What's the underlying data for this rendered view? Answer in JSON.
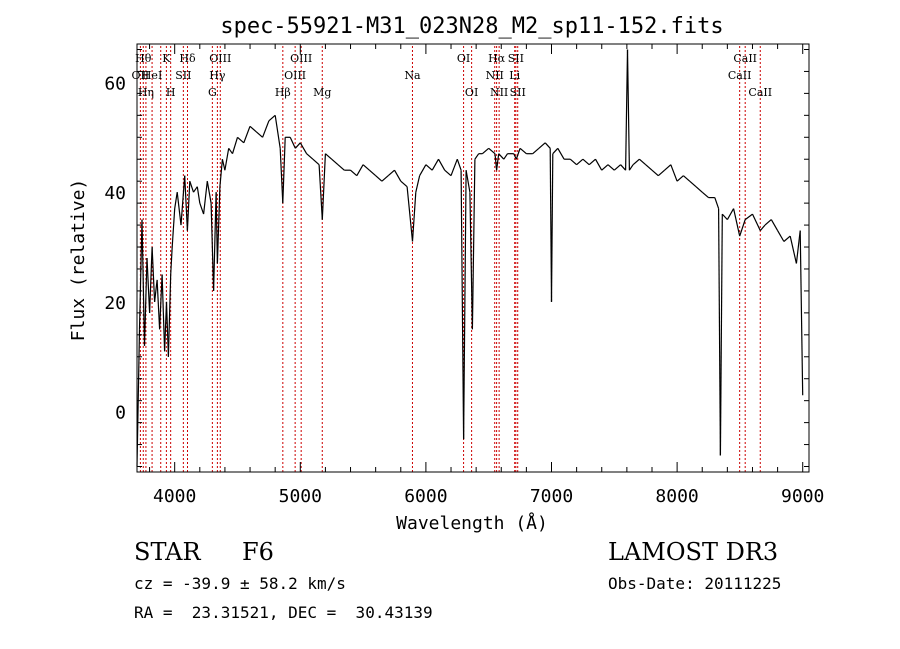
{
  "chart_data": {
    "type": "line",
    "title": "spec-55921-M31_023N28_M2_sp11-152.fits",
    "xlabel": "Wavelength (Å)",
    "ylabel": "Flux (relative)",
    "xlim": [
      3700,
      9050
    ],
    "ylim": [
      -11,
      67
    ],
    "xticks": [
      4000,
      5000,
      6000,
      7000,
      8000,
      9000
    ],
    "yticks": [
      0,
      20,
      40,
      60
    ],
    "line_color": "#000000",
    "marker_color": "#cc0000",
    "series": [
      {
        "x": [
          3700,
          3720,
          3740,
          3760,
          3780,
          3800,
          3820,
          3840,
          3860,
          3880,
          3900,
          3920,
          3935,
          3950,
          3968,
          3980,
          4000,
          4020,
          4050,
          4080,
          4101,
          4120,
          4150,
          4180,
          4200,
          4230,
          4260,
          4290,
          4310,
          4330,
          4340,
          4360,
          4380,
          4400,
          4430,
          4460,
          4500,
          4550,
          4600,
          4650,
          4700,
          4750,
          4800,
          4840,
          4861,
          4880,
          4920,
          4960,
          5000,
          5050,
          5100,
          5150,
          5175,
          5200,
          5250,
          5300,
          5350,
          5400,
          5450,
          5500,
          5550,
          5600,
          5650,
          5700,
          5750,
          5800,
          5850,
          5893,
          5920,
          5950,
          6000,
          6050,
          6100,
          6150,
          6200,
          6250,
          6280,
          6300,
          6320,
          6350,
          6370,
          6390,
          6420,
          6450,
          6500,
          6550,
          6563,
          6580,
          6620,
          6650,
          6700,
          6720,
          6750,
          6800,
          6850,
          6900,
          6950,
          6990,
          7000,
          7010,
          7050,
          7100,
          7150,
          7200,
          7250,
          7300,
          7350,
          7400,
          7450,
          7500,
          7550,
          7590,
          7605,
          7620,
          7650,
          7700,
          7750,
          7800,
          7850,
          7900,
          7950,
          8000,
          8050,
          8100,
          8150,
          8200,
          8250,
          8300,
          8330,
          8345,
          8360,
          8400,
          8450,
          8498,
          8542,
          8600,
          8662,
          8700,
          8750,
          8800,
          8850,
          8900,
          8950,
          8980,
          9000
        ],
        "y": [
          -10,
          15,
          35,
          12,
          28,
          18,
          30,
          20,
          24,
          15,
          25,
          11,
          20,
          10,
          25,
          30,
          37,
          40,
          34,
          43,
          33,
          42,
          40,
          41,
          38,
          36,
          42,
          38,
          22,
          40,
          27,
          41,
          46,
          44,
          48,
          47,
          50,
          49,
          52,
          51,
          50,
          53,
          54,
          48,
          38,
          50,
          50,
          48,
          49,
          47,
          46,
          45,
          35,
          47,
          46,
          45,
          44,
          44,
          43,
          45,
          44,
          43,
          42,
          43,
          44,
          42,
          41,
          31,
          40,
          43,
          45,
          44,
          46,
          44,
          43,
          46,
          44,
          -5,
          44,
          40,
          15,
          46,
          47,
          47,
          48,
          47,
          44,
          47,
          46,
          47,
          47,
          46,
          48,
          47,
          47,
          48,
          49,
          48,
          20,
          47,
          48,
          46,
          46,
          45,
          46,
          45,
          46,
          44,
          45,
          44,
          45,
          44,
          66,
          44,
          45,
          46,
          45,
          44,
          43,
          44,
          45,
          42,
          43,
          42,
          41,
          40,
          39,
          39,
          37,
          -8,
          36,
          35,
          37,
          32,
          35,
          36,
          33,
          34,
          35,
          33,
          31,
          32,
          27,
          33,
          3
        ]
      }
    ],
    "lines": [
      {
        "wl": 3727,
        "label": "OII",
        "row": 2
      },
      {
        "wl": 3750,
        "label": "Hθ",
        "row": 1
      },
      {
        "wl": 3771,
        "label": "Hη",
        "row": 3
      },
      {
        "wl": 3820,
        "label": "HeI",
        "row": 2
      },
      {
        "wl": 3889,
        "label": "",
        "row": 0
      },
      {
        "wl": 3934,
        "label": "K",
        "row": 1
      },
      {
        "wl": 3968,
        "label": "H",
        "row": 3
      },
      {
        "wl": 4069,
        "label": "SII",
        "row": 2
      },
      {
        "wl": 4102,
        "label": "Hδ",
        "row": 1
      },
      {
        "wl": 4300,
        "label": "G",
        "row": 3
      },
      {
        "wl": 4340,
        "label": "Hγ",
        "row": 2
      },
      {
        "wl": 4363,
        "label": "OIII",
        "row": 1
      },
      {
        "wl": 4861,
        "label": "Hβ",
        "row": 3
      },
      {
        "wl": 4959,
        "label": "OIII",
        "row": 2
      },
      {
        "wl": 5007,
        "label": "OIII",
        "row": 1
      },
      {
        "wl": 5175,
        "label": "Mg",
        "row": 3
      },
      {
        "wl": 5893,
        "label": "Na",
        "row": 2
      },
      {
        "wl": 6300,
        "label": "OI",
        "row": 1
      },
      {
        "wl": 6364,
        "label": "OI",
        "row": 3
      },
      {
        "wl": 6548,
        "label": "NII",
        "row": 2
      },
      {
        "wl": 6563,
        "label": "Hα",
        "row": 1
      },
      {
        "wl": 6583,
        "label": "NII",
        "row": 3
      },
      {
        "wl": 6707,
        "label": "Li",
        "row": 2
      },
      {
        "wl": 6716,
        "label": "SII",
        "row": 1
      },
      {
        "wl": 6731,
        "label": "SII",
        "row": 3
      },
      {
        "wl": 8498,
        "label": "CaII",
        "row": 2
      },
      {
        "wl": 8542,
        "label": "CaII",
        "row": 1
      },
      {
        "wl": 8662,
        "label": "CaII",
        "row": 3
      }
    ]
  },
  "info": {
    "object_class": "STAR",
    "subclass": "F6",
    "survey": "LAMOST DR3",
    "cz": "cz = -39.9 ± 58.2 km/s",
    "obs_date": "Obs-Date: 20111225",
    "radec": "RA =  23.31521, DEC =  30.43139"
  }
}
